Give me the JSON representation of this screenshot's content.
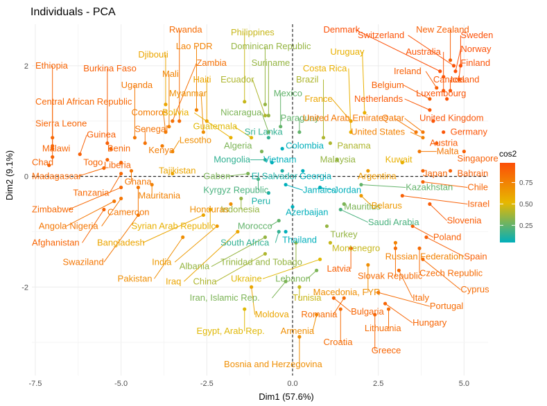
{
  "chart_data": {
    "type": "scatter",
    "title": "Individuals - PCA",
    "xlabel": "Dim1 (57.6%)",
    "ylabel": "Dim2 (9.1%)",
    "xlim": [
      -7.6,
      5.7
    ],
    "ylim": [
      -3.6,
      2.75
    ],
    "x_ticks": [
      -7.5,
      -5.0,
      -2.5,
      0.0,
      2.5,
      5.0
    ],
    "x_tick_labels": [
      "-7.5",
      "-5.0",
      "-2.5",
      "0.0",
      "2.5",
      "5.0"
    ],
    "y_ticks": [
      2,
      0,
      -2
    ],
    "y_tick_labels": [
      "2",
      "0",
      "-2"
    ],
    "grid": true,
    "reference_lines": {
      "x": 0,
      "y": 0,
      "style": "dashed"
    },
    "color_scale": {
      "title": "cos2",
      "stops": [
        "#00AFBB",
        "#E7B800",
        "#FC4E07"
      ],
      "range": [
        0.05,
        0.98
      ],
      "ticks": [
        0.25,
        0.5,
        0.75
      ],
      "tick_labels": [
        "0.25",
        "0.50",
        "0.75"
      ]
    },
    "points": [
      {
        "name": "Rwanda",
        "x": -3.3,
        "y": 1.0,
        "cos2": 0.85,
        "lx": -3.6,
        "ly": 2.6
      },
      {
        "name": "Philippines",
        "x": -1.4,
        "y": 1.35,
        "cos2": 0.45,
        "lx": -1.8,
        "ly": 2.55
      },
      {
        "name": "Denmark",
        "x": 4.3,
        "y": 1.9,
        "cos2": 0.97,
        "lx": 0.9,
        "ly": 2.6
      },
      {
        "name": "New Zealand",
        "x": 4.6,
        "y": 2.1,
        "cos2": 0.9,
        "lx": 3.6,
        "ly": 2.6
      },
      {
        "name": "Switzerland",
        "x": 4.7,
        "y": 2.0,
        "cos2": 0.96,
        "lx": 1.9,
        "ly": 2.5
      },
      {
        "name": "Sweden",
        "x": 4.9,
        "y": 2.0,
        "cos2": 0.97,
        "lx": 4.9,
        "ly": 2.5
      },
      {
        "name": "Lao PDR",
        "x": -2.8,
        "y": 1.2,
        "cos2": 0.75,
        "lx": -3.4,
        "ly": 2.3
      },
      {
        "name": "Dominican Republic",
        "x": -0.8,
        "y": 1.3,
        "cos2": 0.35,
        "lx": -1.8,
        "ly": 2.3
      },
      {
        "name": "Norway",
        "x": 4.75,
        "y": 1.9,
        "cos2": 0.97,
        "lx": 4.9,
        "ly": 2.25
      },
      {
        "name": "Uruguay",
        "x": 2.1,
        "y": 1.15,
        "cos2": 0.55,
        "lx": 1.1,
        "ly": 2.2
      },
      {
        "name": "Australia",
        "x": 4.4,
        "y": 1.8,
        "cos2": 0.95,
        "lx": 3.3,
        "ly": 2.2
      },
      {
        "name": "Djibouti",
        "x": -3.7,
        "y": 1.3,
        "cos2": 0.6,
        "lx": -4.5,
        "ly": 2.15
      },
      {
        "name": "Zambia",
        "x": -3.5,
        "y": 1.0,
        "cos2": 0.83,
        "lx": -2.8,
        "ly": 2.0
      },
      {
        "name": "Suriname",
        "x": -0.7,
        "y": 1.1,
        "cos2": 0.35,
        "lx": -1.2,
        "ly": 2.0
      },
      {
        "name": "Finland",
        "x": 4.85,
        "y": 1.75,
        "cos2": 0.96,
        "lx": 4.9,
        "ly": 2.0
      },
      {
        "name": "Ethiopia",
        "x": -7.0,
        "y": 0.55,
        "cos2": 0.88,
        "lx": -7.5,
        "ly": 1.95
      },
      {
        "name": "Burkina Faso",
        "x": -5.4,
        "y": 0.6,
        "cos2": 0.9,
        "lx": -6.1,
        "ly": 1.9
      },
      {
        "name": "Costa Rica",
        "x": 1.7,
        "y": 0.8,
        "cos2": 0.55,
        "lx": 0.3,
        "ly": 1.9
      },
      {
        "name": "Ireland",
        "x": 4.2,
        "y": 1.6,
        "cos2": 0.9,
        "lx": 2.95,
        "ly": 1.85
      },
      {
        "name": "Mali",
        "x": -3.6,
        "y": 0.9,
        "cos2": 0.75,
        "lx": -3.8,
        "ly": 1.8
      },
      {
        "name": "Haiti",
        "x": -2.5,
        "y": 1.0,
        "cos2": 0.6,
        "lx": -2.9,
        "ly": 1.7
      },
      {
        "name": "Ecuador",
        "x": -0.8,
        "y": 1.1,
        "cos2": 0.4,
        "lx": -2.1,
        "ly": 1.7
      },
      {
        "name": "Brazil",
        "x": 0.9,
        "y": 0.7,
        "cos2": 0.4,
        "lx": 0.1,
        "ly": 1.7
      },
      {
        "name": "Canada",
        "x": 4.4,
        "y": 1.55,
        "cos2": 0.93,
        "lx": 4.1,
        "ly": 1.7
      },
      {
        "name": "Iceland",
        "x": 4.6,
        "y": 1.55,
        "cos2": 0.94,
        "lx": 4.6,
        "ly": 1.7
      },
      {
        "name": "Uganda",
        "x": -4.6,
        "y": 0.7,
        "cos2": 0.8,
        "lx": -5.0,
        "ly": 1.6
      },
      {
        "name": "Belgium",
        "x": 4.0,
        "y": 1.4,
        "cos2": 0.9,
        "lx": 2.3,
        "ly": 1.6
      },
      {
        "name": "Myanmar",
        "x": -2.6,
        "y": 0.8,
        "cos2": 0.7,
        "lx": -3.6,
        "ly": 1.45
      },
      {
        "name": "Mexico",
        "x": -0.35,
        "y": 0.9,
        "cos2": 0.25,
        "lx": -0.55,
        "ly": 1.45
      },
      {
        "name": "Luxembourg",
        "x": 4.5,
        "y": 1.4,
        "cos2": 0.95,
        "lx": 3.6,
        "ly": 1.45
      },
      {
        "name": "Central African Republic",
        "x": -7.0,
        "y": 0.7,
        "cos2": 0.87,
        "lx": -7.5,
        "ly": 1.3
      },
      {
        "name": "France",
        "x": 1.7,
        "y": 1.0,
        "cos2": 0.6,
        "lx": 0.35,
        "ly": 1.35
      },
      {
        "name": "Netherlands",
        "x": 4.0,
        "y": 1.2,
        "cos2": 0.93,
        "lx": 1.8,
        "ly": 1.35
      },
      {
        "name": "Comoros",
        "x": -3.7,
        "y": 0.8,
        "cos2": 0.78,
        "lx": -4.7,
        "ly": 1.1
      },
      {
        "name": "Bolivia",
        "x": -1.8,
        "y": 0.7,
        "cos2": 0.55,
        "lx": -3.8,
        "ly": 1.1
      },
      {
        "name": "Nicaragua",
        "x": -0.7,
        "y": 0.8,
        "cos2": 0.3,
        "lx": -2.1,
        "ly": 1.1
      },
      {
        "name": "Paraguay",
        "x": 0.2,
        "y": 0.8,
        "cos2": 0.25,
        "lx": -0.35,
        "ly": 1.0
      },
      {
        "name": "United Arab Emirates",
        "x": 3.6,
        "y": 0.8,
        "cos2": 0.8,
        "lx": 0.3,
        "ly": 1.0
      },
      {
        "name": "Qatar",
        "x": 3.8,
        "y": 0.8,
        "cos2": 0.8,
        "lx": 2.6,
        "ly": 1.0
      },
      {
        "name": "United Kingdom",
        "x": 4.1,
        "y": 1.0,
        "cos2": 0.95,
        "lx": 3.7,
        "ly": 1.0
      },
      {
        "name": "Sierra Leone",
        "x": -7.0,
        "y": 0.35,
        "cos2": 0.88,
        "lx": -7.5,
        "ly": 0.9
      },
      {
        "name": "Senegal",
        "x": -4.3,
        "y": 0.6,
        "cos2": 0.82,
        "lx": -4.6,
        "ly": 0.8
      },
      {
        "name": "Guatemala",
        "x": -1.2,
        "y": 0.7,
        "cos2": 0.5,
        "lx": -2.9,
        "ly": 0.85
      },
      {
        "name": "Sri Lanka",
        "x": -0.7,
        "y": 0.7,
        "cos2": 0.15,
        "lx": -1.4,
        "ly": 0.75
      },
      {
        "name": "United States",
        "x": 3.8,
        "y": 0.7,
        "cos2": 0.75,
        "lx": 1.7,
        "ly": 0.75
      },
      {
        "name": "Germany",
        "x": 4.4,
        "y": 0.8,
        "cos2": 0.95,
        "lx": 4.6,
        "ly": 0.75
      },
      {
        "name": "Guinea",
        "x": -6.2,
        "y": 0.4,
        "cos2": 0.9,
        "lx": -6.0,
        "ly": 0.7
      },
      {
        "name": "Lesotho",
        "x": -3.5,
        "y": 0.45,
        "cos2": 0.7,
        "lx": -3.3,
        "ly": 0.6
      },
      {
        "name": "Austria",
        "x": 4.2,
        "y": 0.6,
        "cos2": 0.92,
        "lx": 4.0,
        "ly": 0.55
      },
      {
        "name": "Algeria",
        "x": -0.9,
        "y": 0.45,
        "cos2": 0.3,
        "lx": -2.0,
        "ly": 0.5
      },
      {
        "name": "Colombia",
        "x": -0.3,
        "y": 0.5,
        "cos2": 0.05,
        "lx": -0.2,
        "ly": 0.5
      },
      {
        "name": "Panama",
        "x": 1.1,
        "y": 0.6,
        "cos2": 0.4,
        "lx": 1.3,
        "ly": 0.5
      },
      {
        "name": "Malawi",
        "x": -7.0,
        "y": 0.5,
        "cos2": 0.88,
        "lx": -7.3,
        "ly": 0.45
      },
      {
        "name": "Benin",
        "x": -5.3,
        "y": 0.5,
        "cos2": 0.88,
        "lx": -5.4,
        "ly": 0.45
      },
      {
        "name": "Kenya",
        "x": -3.8,
        "y": 0.55,
        "cos2": 0.78,
        "lx": -4.2,
        "ly": 0.42
      },
      {
        "name": "Malta",
        "x": 3.7,
        "y": 0.45,
        "cos2": 0.8,
        "lx": 4.2,
        "ly": 0.4
      },
      {
        "name": "Mongolia",
        "x": -0.8,
        "y": 0.3,
        "cos2": 0.15,
        "lx": -2.3,
        "ly": 0.25
      },
      {
        "name": "Vietnam",
        "x": -0.6,
        "y": 0.25,
        "cos2": 0.05,
        "lx": -0.85,
        "ly": 0.25
      },
      {
        "name": "Malaysia",
        "x": 1.3,
        "y": 0.3,
        "cos2": 0.35,
        "lx": 0.8,
        "ly": 0.25
      },
      {
        "name": "Kuwait",
        "x": 3.2,
        "y": 0.25,
        "cos2": 0.55,
        "lx": 2.7,
        "ly": 0.25
      },
      {
        "name": "Singapore",
        "x": 5.0,
        "y": 0.45,
        "cos2": 0.9,
        "lx": 4.8,
        "ly": 0.27
      },
      {
        "name": "Chad",
        "x": -7.1,
        "y": 0.2,
        "cos2": 0.88,
        "lx": -7.6,
        "ly": 0.2
      },
      {
        "name": "Togo",
        "x": -5.4,
        "y": 0.3,
        "cos2": 0.88,
        "lx": -6.1,
        "ly": 0.2
      },
      {
        "name": "Liberia",
        "x": -5.0,
        "y": 0.25,
        "cos2": 0.88,
        "lx": -5.5,
        "ly": 0.15
      },
      {
        "name": "Madagascar",
        "x": -5.5,
        "y": 0.15,
        "cos2": 0.86,
        "lx": -7.6,
        "ly": -0.05
      },
      {
        "name": "Tajikistan",
        "x": -3.5,
        "y": 0.05,
        "cos2": 0.6,
        "lx": -3.9,
        "ly": 0.05
      },
      {
        "name": "El Salvador",
        "x": -0.3,
        "y": 0.1,
        "cos2": 0.1,
        "lx": -1.2,
        "ly": -0.05
      },
      {
        "name": "Georgia",
        "x": 0.3,
        "y": 0.1,
        "cos2": 0.05,
        "lx": 0.2,
        "ly": -0.05
      },
      {
        "name": "Argentina",
        "x": 2.2,
        "y": 0.1,
        "cos2": 0.65,
        "lx": 1.9,
        "ly": -0.05
      },
      {
        "name": "Japan",
        "x": 3.8,
        "y": 0.1,
        "cos2": 0.88,
        "lx": 3.8,
        "ly": 0.0
      },
      {
        "name": "Bahrain",
        "x": 4.6,
        "y": 0.1,
        "cos2": 0.9,
        "lx": 4.8,
        "ly": 0.0
      },
      {
        "name": "Gabon",
        "x": -1.3,
        "y": 0.05,
        "cos2": 0.3,
        "lx": -2.6,
        "ly": -0.05
      },
      {
        "name": "Ghana",
        "x": -4.7,
        "y": 0.1,
        "cos2": 0.8,
        "lx": -4.9,
        "ly": -0.15
      },
      {
        "name": "Tanzania",
        "x": -5.0,
        "y": 0.05,
        "cos2": 0.86,
        "lx": -6.4,
        "ly": -0.35
      },
      {
        "name": "Kyrgyz Republic",
        "x": -1.0,
        "y": -0.05,
        "cos2": 0.2,
        "lx": -2.6,
        "ly": -0.3
      },
      {
        "name": "Jamaica",
        "x": -0.2,
        "y": -0.15,
        "cos2": 0.05,
        "lx": 0.3,
        "ly": -0.3
      },
      {
        "name": "Jordan",
        "x": 0.8,
        "y": -0.2,
        "cos2": 0.05,
        "lx": 1.2,
        "ly": -0.3
      },
      {
        "name": "Kazakhstan",
        "x": 2.0,
        "y": -0.15,
        "cos2": 0.25,
        "lx": 3.3,
        "ly": -0.25
      },
      {
        "name": "Chile",
        "x": 3.8,
        "y": -0.1,
        "cos2": 0.88,
        "lx": 5.1,
        "ly": -0.25
      },
      {
        "name": "Zimbabwe",
        "x": -5.0,
        "y": -0.2,
        "cos2": 0.86,
        "lx": -7.6,
        "ly": -0.65
      },
      {
        "name": "Mauritania",
        "x": -4.1,
        "y": -0.15,
        "cos2": 0.75,
        "lx": -4.5,
        "ly": -0.4
      },
      {
        "name": "Peru",
        "x": -0.7,
        "y": -0.3,
        "cos2": 0.1,
        "lx": -1.2,
        "ly": -0.5
      },
      {
        "name": "Indonesia",
        "x": -1.5,
        "y": -0.4,
        "cos2": 0.35,
        "lx": -2.1,
        "ly": -0.65
      },
      {
        "name": "Mauritius",
        "x": 1.5,
        "y": -0.5,
        "cos2": 0.3,
        "lx": 1.5,
        "ly": -0.6
      },
      {
        "name": "Belarus",
        "x": 2.0,
        "y": -0.35,
        "cos2": 0.65,
        "lx": 2.3,
        "ly": -0.58
      },
      {
        "name": "Israel",
        "x": 3.2,
        "y": -0.35,
        "cos2": 0.9,
        "lx": 5.1,
        "ly": -0.55
      },
      {
        "name": "Cameroon",
        "x": -4.5,
        "y": -0.2,
        "cos2": 0.8,
        "lx": -5.4,
        "ly": -0.7
      },
      {
        "name": "Honduras",
        "x": -1.8,
        "y": -0.5,
        "cos2": 0.7,
        "lx": -3.0,
        "ly": -0.65
      },
      {
        "name": "Azerbaijan",
        "x": 0.0,
        "y": -0.55,
        "cos2": 0.05,
        "lx": -0.2,
        "ly": -0.7
      },
      {
        "name": "Slovenia",
        "x": 4.0,
        "y": -0.5,
        "cos2": 0.92,
        "lx": 4.5,
        "ly": -0.85
      },
      {
        "name": "Angola",
        "x": -5.2,
        "y": -0.45,
        "cos2": 0.8,
        "lx": -7.4,
        "ly": -0.95
      },
      {
        "name": "Nigeria",
        "x": -5.0,
        "y": -0.4,
        "cos2": 0.8,
        "lx": -6.5,
        "ly": -0.95
      },
      {
        "name": "Syrian Arab Republic",
        "x": -2.4,
        "y": -0.6,
        "cos2": 0.55,
        "lx": -4.7,
        "ly": -0.95
      },
      {
        "name": "Morocco",
        "x": -0.4,
        "y": -0.8,
        "cos2": 0.25,
        "lx": -1.6,
        "ly": -0.95
      },
      {
        "name": "Saudi Arabia",
        "x": 1.4,
        "y": -0.6,
        "cos2": 0.2,
        "lx": 2.2,
        "ly": -0.88
      },
      {
        "name": "Turkey",
        "x": 1.0,
        "y": -0.9,
        "cos2": 0.35,
        "lx": 1.1,
        "ly": -1.1
      },
      {
        "name": "Poland",
        "x": 3.5,
        "y": -0.9,
        "cos2": 0.9,
        "lx": 4.1,
        "ly": -1.15
      },
      {
        "name": "Afghanistan",
        "x": -5.5,
        "y": -0.6,
        "cos2": 0.88,
        "lx": -7.6,
        "ly": -1.25
      },
      {
        "name": "Bangladesh",
        "x": -2.6,
        "y": -0.7,
        "cos2": 0.6,
        "lx": -5.7,
        "ly": -1.25
      },
      {
        "name": "South Africa",
        "x": -0.4,
        "y": -1.0,
        "cos2": 0.15,
        "lx": -2.1,
        "ly": -1.25
      },
      {
        "name": "Thailand",
        "x": -0.2,
        "y": -1.0,
        "cos2": 0.05,
        "lx": -0.3,
        "ly": -1.2
      },
      {
        "name": "Montenegro",
        "x": 1.1,
        "y": -1.2,
        "cos2": 0.45,
        "lx": 1.15,
        "ly": -1.35
      },
      {
        "name": "Spain",
        "x": 3.9,
        "y": -1.1,
        "cos2": 0.9,
        "lx": 5.0,
        "ly": -1.5
      },
      {
        "name": "Russian Federation",
        "x": 3.0,
        "y": -1.2,
        "cos2": 0.75,
        "lx": 2.7,
        "ly": -1.5
      },
      {
        "name": "Swaziland",
        "x": -4.5,
        "y": -0.7,
        "cos2": 0.8,
        "lx": -6.7,
        "ly": -1.6
      },
      {
        "name": "India",
        "x": -2.2,
        "y": -0.9,
        "cos2": 0.65,
        "lx": -4.1,
        "ly": -1.6
      },
      {
        "name": "Albania",
        "x": -0.8,
        "y": -1.1,
        "cos2": 0.35,
        "lx": -3.3,
        "ly": -1.68
      },
      {
        "name": "Trinidad and Tobago",
        "x": 0.1,
        "y": -1.2,
        "cos2": 0.35,
        "lx": -2.1,
        "ly": -1.6
      },
      {
        "name": "Latvia",
        "x": 1.7,
        "y": -1.3,
        "cos2": 0.9,
        "lx": 1.0,
        "ly": -1.72
      },
      {
        "name": "Czech Republic",
        "x": 3.7,
        "y": -1.3,
        "cos2": 0.85,
        "lx": 3.7,
        "ly": -1.8
      },
      {
        "name": "Slovak Republic",
        "x": 3.0,
        "y": -1.3,
        "cos2": 0.85,
        "lx": 1.9,
        "ly": -1.85
      },
      {
        "name": "Pakistan",
        "x": -3.2,
        "y": -1.1,
        "cos2": 0.7,
        "lx": -5.1,
        "ly": -1.9
      },
      {
        "name": "Iraq",
        "x": -1.6,
        "y": -1.0,
        "cos2": 0.6,
        "lx": -3.7,
        "ly": -1.95
      },
      {
        "name": "China",
        "x": -0.8,
        "y": -1.4,
        "cos2": 0.4,
        "lx": -2.9,
        "ly": -1.95
      },
      {
        "name": "Ukraine",
        "x": 0.8,
        "y": -1.5,
        "cos2": 0.5,
        "lx": -1.8,
        "ly": -1.9
      },
      {
        "name": "Lebanon",
        "x": 0.7,
        "y": -1.7,
        "cos2": 0.3,
        "lx": -0.5,
        "ly": -1.9
      },
      {
        "name": "Cyprus",
        "x": 3.8,
        "y": -1.5,
        "cos2": 0.85,
        "lx": 4.9,
        "ly": -2.1
      },
      {
        "name": "Macedonia, FYR",
        "x": 2.2,
        "y": -1.6,
        "cos2": 0.7,
        "lx": 0.6,
        "ly": -2.15
      },
      {
        "name": "Italy",
        "x": 3.1,
        "y": -1.7,
        "cos2": 0.85,
        "lx": 3.5,
        "ly": -2.25
      },
      {
        "name": "Iran, Islamic Rep.",
        "x": -0.2,
        "y": -1.9,
        "cos2": 0.3,
        "lx": -3.0,
        "ly": -2.25
      },
      {
        "name": "Tunisia",
        "x": 0.2,
        "y": -2.0,
        "cos2": 0.45,
        "lx": 0.0,
        "ly": -2.25
      },
      {
        "name": "Portugal",
        "x": 2.5,
        "y": -2.1,
        "cos2": 0.85,
        "lx": 4.0,
        "ly": -2.4
      },
      {
        "name": "Bulgaria",
        "x": 1.2,
        "y": -2.2,
        "cos2": 0.88,
        "lx": 1.7,
        "ly": -2.5
      },
      {
        "name": "Moldova",
        "x": -1.2,
        "y": -2.0,
        "cos2": 0.6,
        "lx": -1.1,
        "ly": -2.55
      },
      {
        "name": "Romania",
        "x": 1.5,
        "y": -2.2,
        "cos2": 0.85,
        "lx": 0.25,
        "ly": -2.55
      },
      {
        "name": "Hungary",
        "x": 2.7,
        "y": -2.3,
        "cos2": 0.88,
        "lx": 3.5,
        "ly": -2.7
      },
      {
        "name": "Lithuania",
        "x": 2.8,
        "y": -2.4,
        "cos2": 0.85,
        "lx": 2.1,
        "ly": -2.8
      },
      {
        "name": "Egypt, Arab Rep.",
        "x": -1.4,
        "y": -2.4,
        "cos2": 0.5,
        "lx": -2.8,
        "ly": -2.85
      },
      {
        "name": "Armenia",
        "x": 0.7,
        "y": -2.5,
        "cos2": 0.7,
        "lx": -0.35,
        "ly": -2.85
      },
      {
        "name": "Croatia",
        "x": 1.4,
        "y": -2.4,
        "cos2": 0.85,
        "lx": 0.9,
        "ly": -3.05
      },
      {
        "name": "Greece",
        "x": 2.4,
        "y": -2.5,
        "cos2": 0.88,
        "lx": 2.3,
        "ly": -3.2
      },
      {
        "name": "Bosnia and Herzegovina",
        "x": 0.2,
        "y": -2.9,
        "cos2": 0.7,
        "lx": -2.0,
        "ly": -3.45
      }
    ]
  }
}
